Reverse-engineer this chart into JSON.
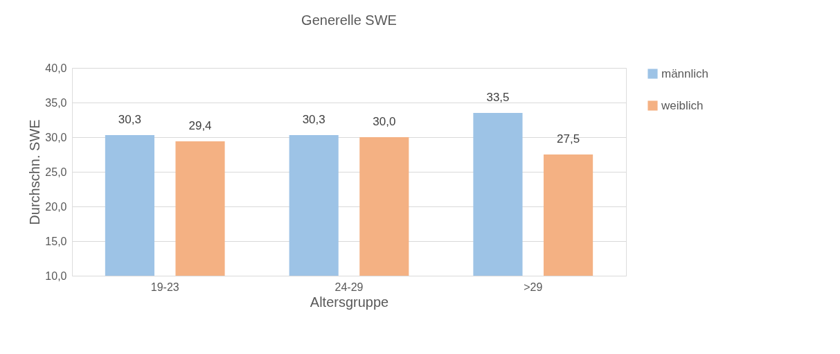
{
  "chart_data": {
    "type": "bar",
    "title": "Generelle SWE",
    "xlabel": "Altersgruppe",
    "ylabel": "Durchschn. SWE",
    "categories": [
      "19-23",
      "24-29",
      ">29"
    ],
    "series": [
      {
        "name": "männlich",
        "color": "#9dc3e6",
        "values": [
          30.3,
          30.3,
          33.5
        ],
        "value_labels": [
          "30,3",
          "30,3",
          "33,5"
        ]
      },
      {
        "name": "weiblich",
        "color": "#f4b183",
        "values": [
          29.4,
          30.0,
          27.5
        ],
        "value_labels": [
          "29,4",
          "30,0",
          "27,5"
        ]
      }
    ],
    "ylim": [
      10,
      40
    ],
    "yticks": [
      {
        "value": 10,
        "label": "10,0"
      },
      {
        "value": 15,
        "label": "15,0"
      },
      {
        "value": 20,
        "label": "20,0"
      },
      {
        "value": 25,
        "label": "25,0"
      },
      {
        "value": 30,
        "label": "30,0"
      },
      {
        "value": 35,
        "label": "35,0"
      },
      {
        "value": 40,
        "label": "40,0"
      }
    ],
    "grid": "y",
    "legend": "right"
  }
}
